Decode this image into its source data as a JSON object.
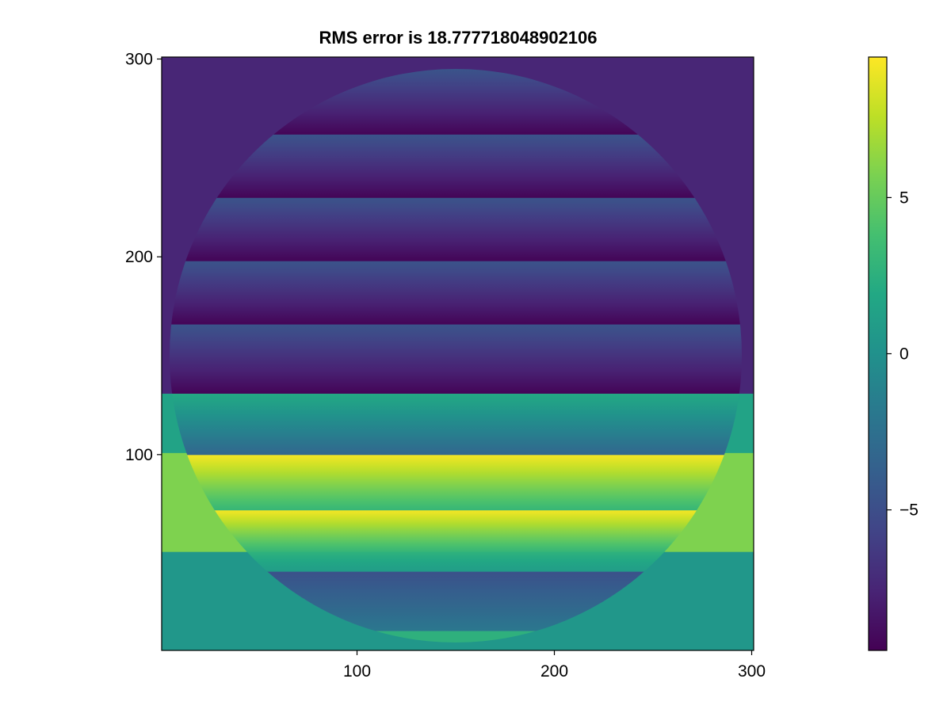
{
  "chart_data": {
    "type": "heatmap",
    "title": "RMS error is 18.777718048902106",
    "xlabel": "",
    "ylabel": "",
    "xlim": [
      1,
      301
    ],
    "ylim": [
      1,
      301
    ],
    "x_ticks": [
      100,
      200,
      300
    ],
    "y_ticks": [
      100,
      200,
      300
    ],
    "grid": false,
    "colormap": "viridis",
    "colorbar": {
      "range": [
        -9.5,
        9.5
      ],
      "ticks": [
        -5,
        0,
        5
      ],
      "tick_labels": [
        "−5",
        "0",
        "5"
      ],
      "placement": "right"
    },
    "mask": {
      "shape": "circle",
      "center": [
        150,
        150
      ],
      "radius": 145
    },
    "outside_bands": [
      {
        "y_range": [
          1,
          51
        ],
        "value": 0.5
      },
      {
        "y_range": [
          51,
          101
        ],
        "value": 5.8
      },
      {
        "y_range": [
          101,
          131
        ],
        "value": 1.5
      },
      {
        "y_range": [
          131,
          301
        ],
        "value": -7.5
      }
    ],
    "inside_bands": [
      {
        "y_range": [
          5,
          11
        ],
        "value_bottom": 2.6,
        "value_top": 2.6
      },
      {
        "y_range": [
          11,
          41
        ],
        "value_bottom": -2.0,
        "value_top": -4.8
      },
      {
        "y_range": [
          41,
          51
        ],
        "value_bottom": 0.9,
        "value_top": 2.7
      },
      {
        "y_range": [
          51,
          72
        ],
        "value_bottom": 3.0,
        "value_top": 9.3
      },
      {
        "y_range": [
          72,
          100
        ],
        "value_bottom": 3.0,
        "value_top": 9.3
      },
      {
        "y_range": [
          100,
          131
        ],
        "value_bottom": -3.2,
        "value_top": 2.0
      },
      {
        "y_range": [
          131,
          166
        ],
        "value_bottom": -9.3,
        "value_top": -4.6
      },
      {
        "y_range": [
          166,
          198
        ],
        "value_bottom": -9.3,
        "value_top": -4.6
      },
      {
        "y_range": [
          198,
          230
        ],
        "value_bottom": -9.3,
        "value_top": -4.6
      },
      {
        "y_range": [
          230,
          262
        ],
        "value_bottom": -9.3,
        "value_top": -4.6
      },
      {
        "y_range": [
          262,
          295
        ],
        "value_bottom": -9.3,
        "value_top": -4.6
      }
    ]
  }
}
